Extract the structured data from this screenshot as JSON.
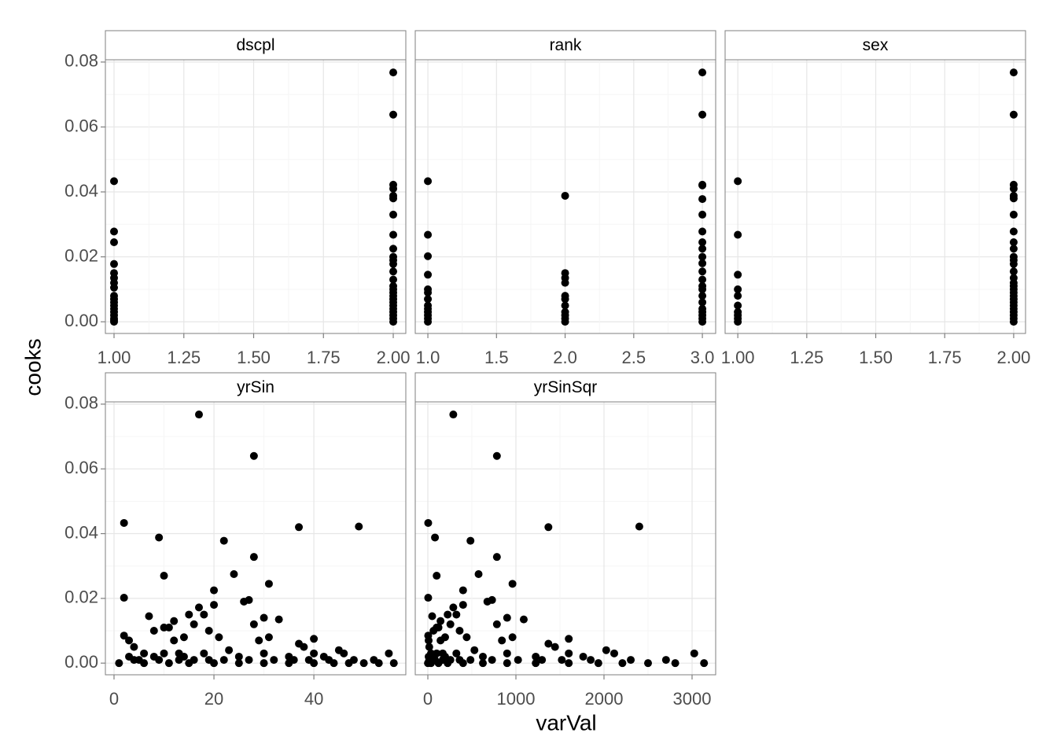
{
  "xlabel": "varVal",
  "ylabel": "cooks",
  "ylim": [
    -0.0036,
    0.0807
  ],
  "yticks": [
    {
      "value": 0,
      "label": "0.00"
    },
    {
      "value": 0.02,
      "label": "0.02"
    },
    {
      "value": 0.04,
      "label": "0.04"
    },
    {
      "value": 0.06,
      "label": "0.06"
    },
    {
      "value": 0.08,
      "label": "0.08"
    }
  ],
  "chart_data": [
    {
      "type": "scatter",
      "title": "dscpl",
      "color": "#000000",
      "grid": true,
      "xlim": [
        0.969,
        2.045
      ],
      "xticks": [
        {
          "value": 1,
          "label": "1.00"
        },
        {
          "value": 1.25,
          "label": "1.25"
        },
        {
          "value": 1.5,
          "label": "1.50"
        },
        {
          "value": 1.75,
          "label": "1.75"
        },
        {
          "value": 2,
          "label": "2.00"
        }
      ],
      "x": [
        1,
        1,
        1,
        1,
        1,
        1,
        1,
        1,
        1,
        1,
        1,
        1,
        1,
        1,
        1,
        1,
        1,
        1,
        2,
        2,
        2,
        2,
        2,
        2,
        2,
        2,
        2,
        2,
        2,
        2,
        2,
        2,
        2,
        2,
        2,
        2,
        2,
        2,
        2,
        2,
        2,
        2,
        2,
        2
      ],
      "values": [
        0.0433,
        0.0278,
        0.0245,
        0.0178,
        0.015,
        0.0135,
        0.012,
        0.0105,
        0.008,
        0.007,
        0.006,
        0.005,
        0.004,
        0.003,
        0.002,
        0.001,
        0.0005,
        0,
        0.0768,
        0.0638,
        0.0422,
        0.041,
        0.0388,
        0.038,
        0.033,
        0.0268,
        0.0225,
        0.02,
        0.019,
        0.0178,
        0.0155,
        0.013,
        0.011,
        0.01,
        0.009,
        0.008,
        0.007,
        0.006,
        0.005,
        0.004,
        0.003,
        0.002,
        0.001,
        0
      ]
    },
    {
      "type": "scatter",
      "title": "rank",
      "color": "#000000",
      "grid": true,
      "xlim": [
        0.908,
        3.097
      ],
      "xticks": [
        {
          "value": 1,
          "label": "1.0"
        },
        {
          "value": 1.5,
          "label": "1.5"
        },
        {
          "value": 2,
          "label": "2.0"
        },
        {
          "value": 2.5,
          "label": "2.5"
        },
        {
          "value": 3,
          "label": "3.0"
        }
      ],
      "x": [
        1,
        1,
        1,
        1,
        1,
        1,
        1,
        1,
        1,
        1,
        1,
        1,
        1,
        2,
        2,
        2,
        2,
        2,
        2,
        2,
        2,
        2,
        2,
        2,
        3,
        3,
        3,
        3,
        3,
        3,
        3,
        3,
        3,
        3,
        3,
        3,
        3,
        3,
        3,
        3,
        3,
        3,
        3,
        3,
        3,
        3
      ],
      "values": [
        0.0433,
        0.0268,
        0.0202,
        0.0145,
        0.01,
        0.009,
        0.007,
        0.005,
        0.004,
        0.003,
        0.002,
        0.001,
        0,
        0.0388,
        0.015,
        0.0135,
        0.012,
        0.008,
        0.007,
        0.005,
        0.003,
        0.002,
        0.001,
        0,
        0.0768,
        0.0638,
        0.0422,
        0.042,
        0.0378,
        0.033,
        0.0278,
        0.0245,
        0.0225,
        0.02,
        0.018,
        0.0155,
        0.013,
        0.011,
        0.01,
        0.008,
        0.006,
        0.004,
        0.003,
        0.002,
        0.001,
        0
      ]
    },
    {
      "type": "scatter",
      "title": "sex",
      "color": "#000000",
      "grid": true,
      "xlim": [
        0.954,
        2.043
      ],
      "xticks": [
        {
          "value": 1,
          "label": "1.00"
        },
        {
          "value": 1.25,
          "label": "1.25"
        },
        {
          "value": 1.5,
          "label": "1.50"
        },
        {
          "value": 1.75,
          "label": "1.75"
        },
        {
          "value": 2,
          "label": "2.00"
        }
      ],
      "x": [
        1,
        1,
        1,
        1,
        1,
        1,
        1,
        1,
        1,
        1,
        2,
        2,
        2,
        2,
        2,
        2,
        2,
        2,
        2,
        2,
        2,
        2,
        2,
        2,
        2,
        2,
        2,
        2,
        2,
        2,
        2,
        2,
        2,
        2,
        2,
        2,
        2,
        2
      ],
      "values": [
        0.0433,
        0.0268,
        0.0145,
        0.01,
        0.008,
        0.005,
        0.003,
        0.002,
        0.001,
        0,
        0.0768,
        0.0638,
        0.0422,
        0.041,
        0.0388,
        0.038,
        0.033,
        0.0278,
        0.0245,
        0.0225,
        0.02,
        0.019,
        0.0178,
        0.0155,
        0.0135,
        0.012,
        0.011,
        0.01,
        0.009,
        0.008,
        0.007,
        0.006,
        0.005,
        0.004,
        0.003,
        0.002,
        0.001,
        0
      ]
    },
    {
      "type": "scatter",
      "title": "yrSin",
      "color": "#000000",
      "grid": true,
      "xlim": [
        -1.73,
        58.4
      ],
      "xticks": [
        0,
        20,
        40
      ],
      "x": [
        17,
        28,
        2,
        37,
        49,
        9,
        22,
        28,
        10,
        24,
        31,
        20,
        2,
        26,
        27,
        20,
        17,
        15,
        7,
        18,
        30,
        33,
        12,
        16,
        28,
        10,
        11,
        8,
        19,
        2,
        3,
        12,
        14,
        31,
        40,
        21,
        29,
        37,
        38,
        4,
        45,
        6,
        13,
        55,
        50,
        56,
        1,
        3,
        5,
        8,
        10,
        14,
        18,
        23,
        25,
        30,
        35,
        40,
        42,
        46,
        48,
        52,
        53,
        6,
        11,
        15,
        20,
        25,
        30,
        35,
        40,
        44,
        47,
        4,
        9,
        13,
        16,
        19,
        22,
        27,
        32,
        36,
        39,
        43
      ],
      "values": [
        0.0768,
        0.064,
        0.0433,
        0.042,
        0.0422,
        0.0388,
        0.0378,
        0.0328,
        0.027,
        0.0275,
        0.0245,
        0.0225,
        0.0202,
        0.019,
        0.0195,
        0.018,
        0.0172,
        0.015,
        0.0145,
        0.015,
        0.014,
        0.0135,
        0.013,
        0.012,
        0.012,
        0.011,
        0.011,
        0.01,
        0.01,
        0.0085,
        0.007,
        0.007,
        0.008,
        0.008,
        0.0075,
        0.008,
        0.007,
        0.006,
        0.005,
        0.005,
        0.004,
        0.003,
        0.003,
        0.003,
        0,
        0,
        0,
        0.002,
        0.001,
        0.002,
        0.003,
        0.002,
        0.003,
        0.004,
        0.002,
        0.003,
        0.002,
        0.003,
        0.002,
        0.003,
        0.001,
        0.001,
        0,
        0,
        0,
        0,
        0,
        0,
        0,
        0,
        0,
        0,
        0,
        0.001,
        0.001,
        0.001,
        0.001,
        0.001,
        0.001,
        0.001,
        0.001,
        0.001,
        0.001,
        0.001
      ]
    },
    {
      "type": "scatter",
      "title": "yrSinSqr",
      "color": "#000000",
      "grid": true,
      "xlim": [
        -143,
        3268
      ],
      "xticks": [
        0,
        1000,
        2000,
        3000
      ],
      "x": [
        289,
        784,
        4,
        1369,
        2401,
        81,
        484,
        784,
        100,
        576,
        961,
        400,
        4,
        676,
        729,
        400,
        289,
        225,
        49,
        324,
        900,
        1089,
        144,
        256,
        784,
        100,
        121,
        64,
        361,
        4,
        9,
        144,
        196,
        961,
        1600,
        441,
        841,
        1369,
        1444,
        16,
        2025,
        36,
        169,
        3025,
        2500,
        3136,
        1,
        9,
        25,
        64,
        100,
        196,
        324,
        529,
        625,
        900,
        1225,
        1600,
        1764,
        2116,
        2304,
        2704,
        2809,
        36,
        121,
        225,
        400,
        625,
        900,
        1225,
        1600,
        1936,
        2209,
        16,
        81,
        169,
        256,
        361,
        484,
        729,
        1024,
        1296,
        1521,
        1849
      ],
      "values": [
        0.0768,
        0.064,
        0.0433,
        0.042,
        0.0422,
        0.0388,
        0.0378,
        0.0328,
        0.027,
        0.0275,
        0.0245,
        0.0225,
        0.0202,
        0.019,
        0.0195,
        0.018,
        0.0172,
        0.015,
        0.0145,
        0.015,
        0.014,
        0.0135,
        0.013,
        0.012,
        0.012,
        0.011,
        0.011,
        0.01,
        0.01,
        0.0085,
        0.007,
        0.007,
        0.008,
        0.008,
        0.0075,
        0.008,
        0.007,
        0.006,
        0.005,
        0.005,
        0.004,
        0.003,
        0.003,
        0.003,
        0,
        0,
        0,
        0.002,
        0.001,
        0.002,
        0.003,
        0.002,
        0.003,
        0.004,
        0.002,
        0.003,
        0.002,
        0.003,
        0.002,
        0.003,
        0.001,
        0.001,
        0,
        0,
        0,
        0,
        0,
        0,
        0,
        0,
        0,
        0,
        0,
        0.001,
        0.001,
        0.001,
        0.001,
        0.001,
        0.001,
        0.001,
        0.001,
        0.001,
        0.001,
        0.001
      ]
    }
  ]
}
